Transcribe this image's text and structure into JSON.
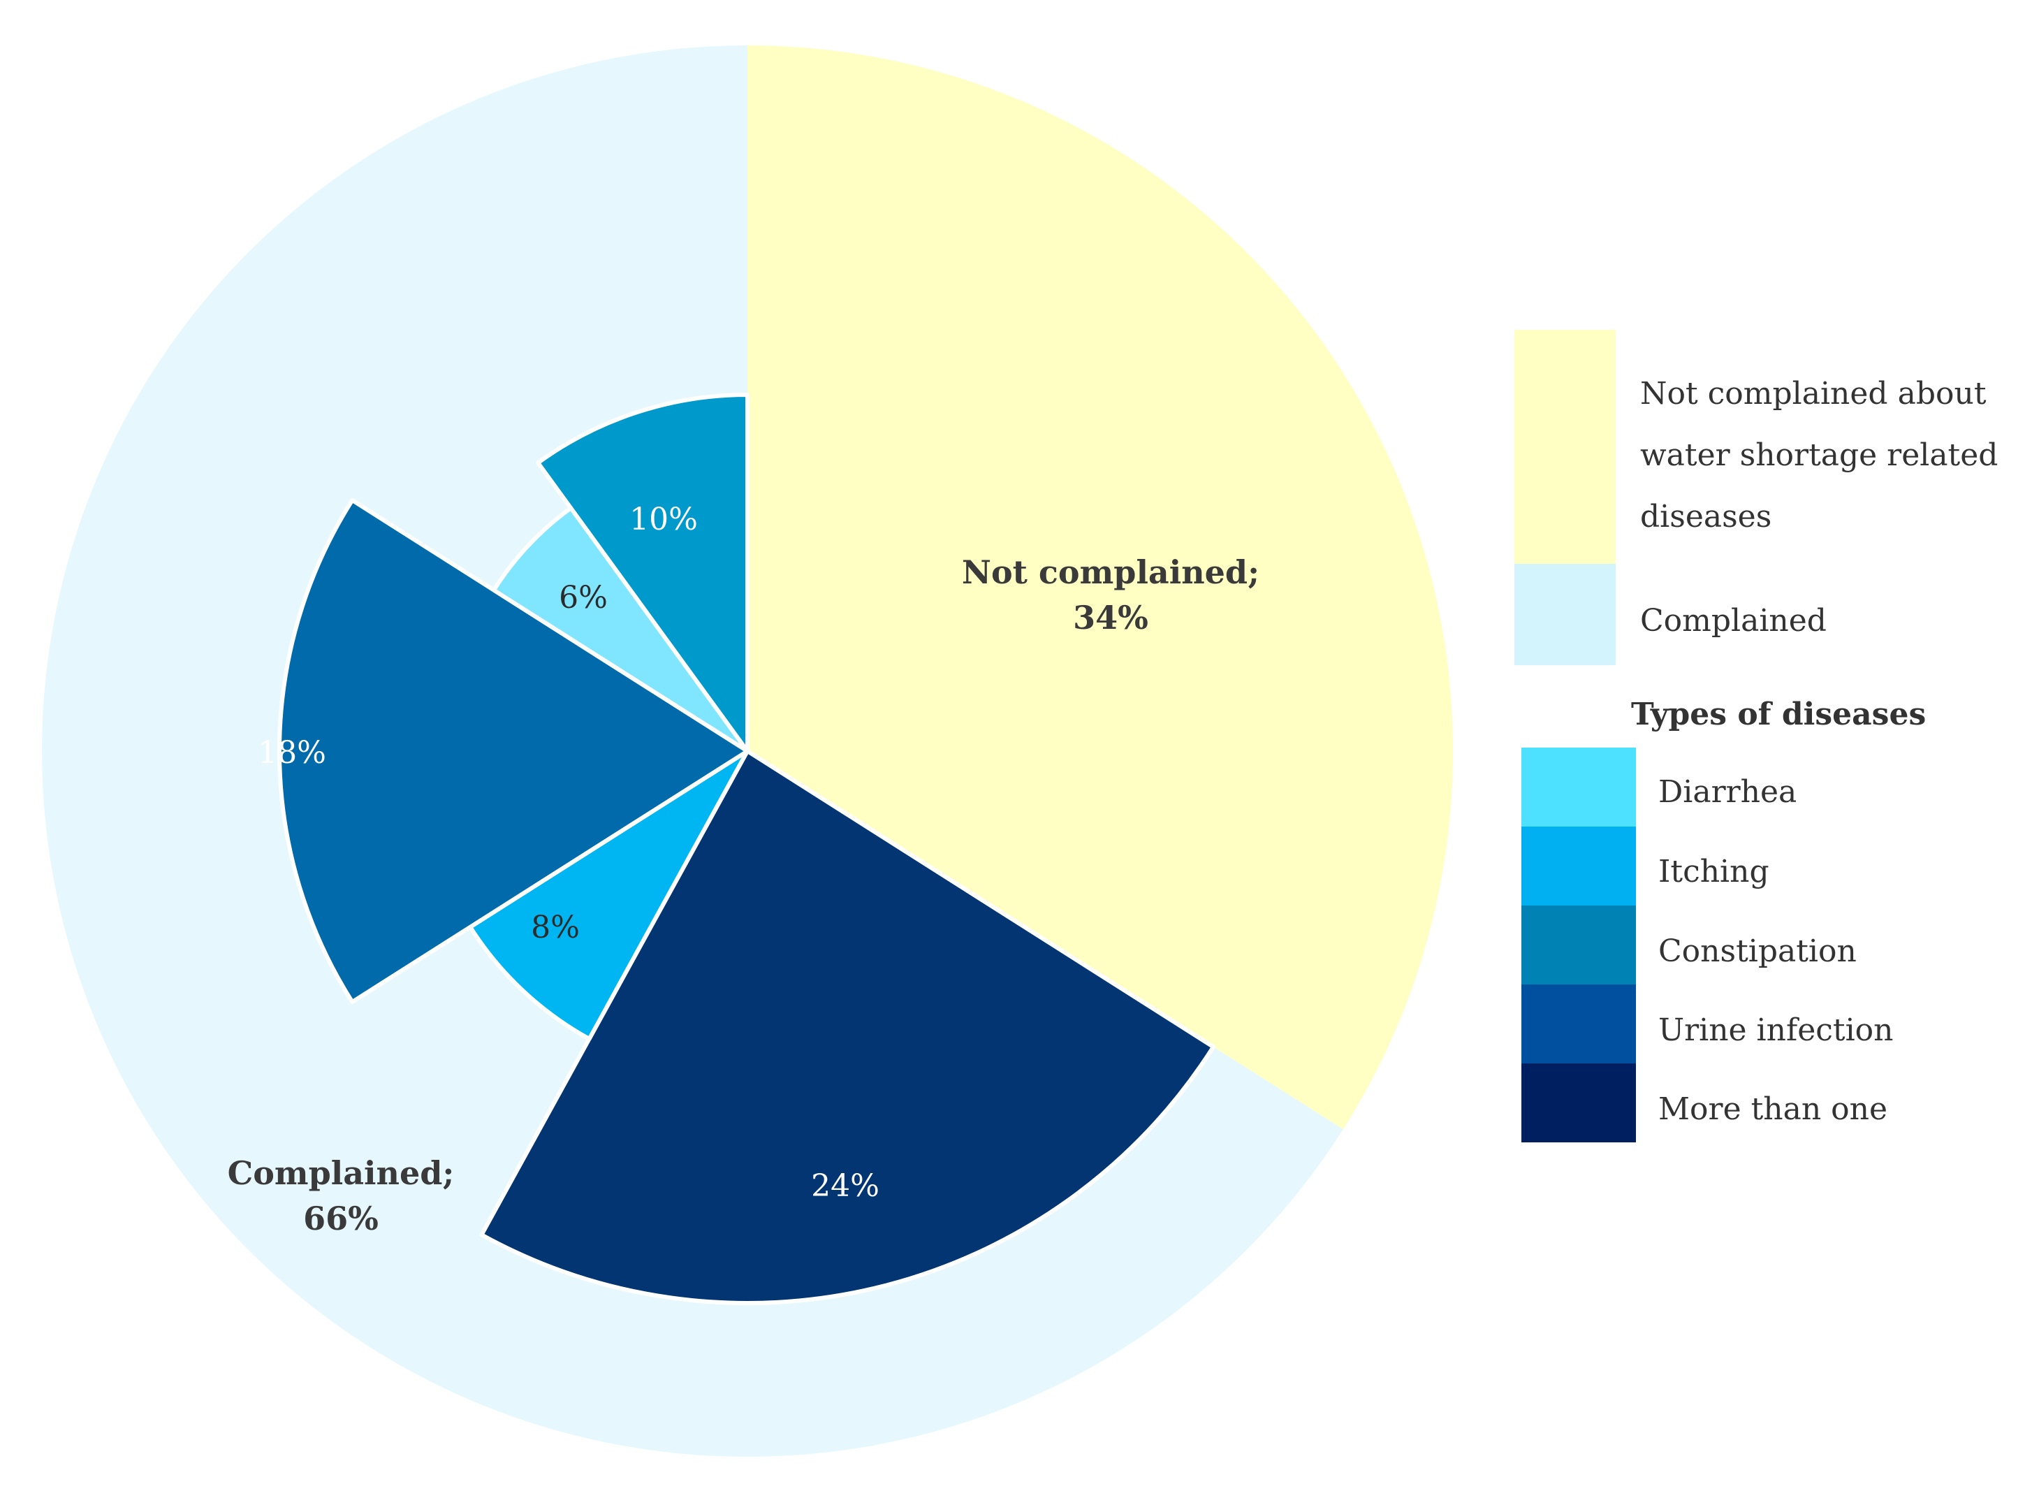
{
  "chart_data": {
    "type": "pie",
    "outer": {
      "slices": [
        {
          "key": "not_complained",
          "label": "Not complained",
          "value": 34,
          "display": "Not complained;",
          "pct": "34%",
          "color": "#FFFFC3"
        },
        {
          "key": "complained",
          "label": "Complained",
          "value": 66,
          "display": "Complained;",
          "pct": "66%",
          "color": "#E6F8FE"
        }
      ]
    },
    "inner": {
      "slices": [
        {
          "name": "More than one",
          "value": 24,
          "label": "24%",
          "color": "#033573",
          "label_color": "#ffffff"
        },
        {
          "name": "Itching",
          "value": 8,
          "label": "8%",
          "color": "#00B6F2",
          "label_color": "#2b2b2b"
        },
        {
          "name": "Urine infection",
          "value": 18,
          "label": "18%",
          "color": "#006AAB",
          "label_color": "#ffffff"
        },
        {
          "name": "Diarrhea",
          "value": 6,
          "label": "6%",
          "color": "#80E6FF",
          "label_color": "#2b2b2b"
        },
        {
          "name": "Constipation",
          "value": 10,
          "label": "10%",
          "color": "#0099CC",
          "label_color": "#ffffff"
        }
      ]
    },
    "legend": {
      "complaint": [
        {
          "label": "Not complained about water shortage related diseases",
          "lines": [
            "Not complained about",
            "water shortage related",
            "diseases"
          ],
          "color": "#FFFFC3"
        },
        {
          "label": "Complained",
          "lines": [
            "Complained"
          ],
          "color": "#D4F4FD"
        }
      ],
      "diseases_title": "Types of diseases",
      "diseases": [
        {
          "label": "Diarrhea",
          "color": "#4DE0FF"
        },
        {
          "label": "Itching",
          "color": "#00B0F0"
        },
        {
          "label": "Constipation",
          "color": "#0082B4"
        },
        {
          "label": "Urine infection",
          "color": "#0050A0"
        },
        {
          "label": "More than one",
          "color": "#001F60"
        }
      ],
      "placement": "right"
    }
  }
}
